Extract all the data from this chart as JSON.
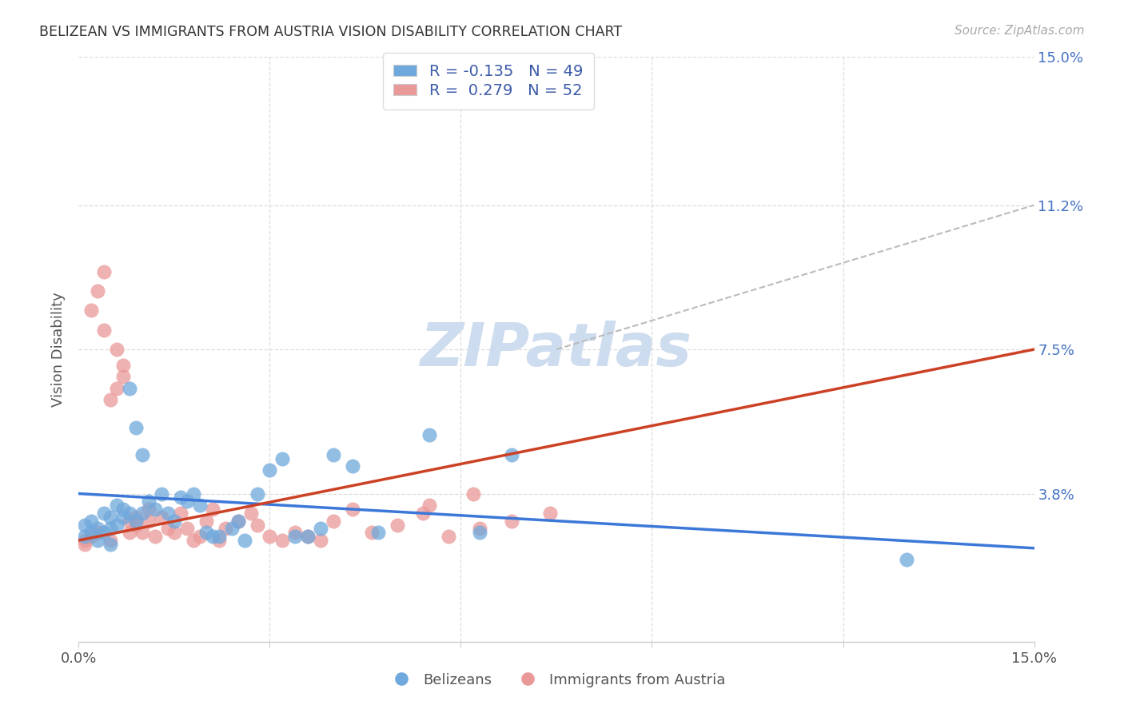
{
  "title": "BELIZEAN VS IMMIGRANTS FROM AUSTRIA VISION DISABILITY CORRELATION CHART",
  "source": "Source: ZipAtlas.com",
  "ylabel_label": "Vision Disability",
  "xlim": [
    0.0,
    0.15
  ],
  "ylim": [
    0.0,
    0.15
  ],
  "r_belizean": -0.135,
  "n_belizean": 49,
  "r_austria": 0.279,
  "n_austria": 52,
  "blue_color": "#6fa8dc",
  "pink_color": "#ea9999",
  "trend_blue": "#3c78d8",
  "trend_pink": "#cc4125",
  "trend_dashed_color": "#bbbbbb",
  "watermark_color": "#cddcee",
  "belizean_x": [
    0.001,
    0.001,
    0.002,
    0.002,
    0.003,
    0.003,
    0.004,
    0.004,
    0.005,
    0.005,
    0.005,
    0.006,
    0.006,
    0.007,
    0.007,
    0.008,
    0.008,
    0.009,
    0.009,
    0.01,
    0.01,
    0.011,
    0.012,
    0.013,
    0.014,
    0.015,
    0.016,
    0.017,
    0.018,
    0.019,
    0.02,
    0.021,
    0.022,
    0.024,
    0.025,
    0.026,
    0.028,
    0.03,
    0.032,
    0.034,
    0.036,
    0.038,
    0.04,
    0.043,
    0.047,
    0.055,
    0.063,
    0.068,
    0.13
  ],
  "belizean_y": [
    0.027,
    0.03,
    0.028,
    0.031,
    0.026,
    0.029,
    0.033,
    0.028,
    0.032,
    0.029,
    0.025,
    0.03,
    0.035,
    0.034,
    0.032,
    0.033,
    0.065,
    0.031,
    0.055,
    0.048,
    0.033,
    0.036,
    0.034,
    0.038,
    0.033,
    0.031,
    0.037,
    0.036,
    0.038,
    0.035,
    0.028,
    0.027,
    0.027,
    0.029,
    0.031,
    0.026,
    0.038,
    0.044,
    0.047,
    0.027,
    0.027,
    0.029,
    0.048,
    0.045,
    0.028,
    0.053,
    0.028,
    0.048,
    0.021
  ],
  "austria_x": [
    0.001,
    0.001,
    0.002,
    0.002,
    0.003,
    0.003,
    0.004,
    0.004,
    0.005,
    0.005,
    0.006,
    0.006,
    0.007,
    0.007,
    0.008,
    0.008,
    0.009,
    0.009,
    0.01,
    0.011,
    0.011,
    0.012,
    0.013,
    0.014,
    0.015,
    0.016,
    0.017,
    0.018,
    0.019,
    0.02,
    0.021,
    0.022,
    0.023,
    0.025,
    0.027,
    0.028,
    0.03,
    0.032,
    0.034,
    0.036,
    0.038,
    0.04,
    0.043,
    0.046,
    0.05,
    0.054,
    0.058,
    0.063,
    0.068,
    0.074,
    0.062,
    0.055
  ],
  "austria_y": [
    0.026,
    0.025,
    0.027,
    0.085,
    0.028,
    0.09,
    0.095,
    0.08,
    0.026,
    0.062,
    0.065,
    0.075,
    0.071,
    0.068,
    0.028,
    0.031,
    0.03,
    0.032,
    0.028,
    0.031,
    0.034,
    0.027,
    0.032,
    0.029,
    0.028,
    0.033,
    0.029,
    0.026,
    0.027,
    0.031,
    0.034,
    0.026,
    0.029,
    0.031,
    0.033,
    0.03,
    0.027,
    0.026,
    0.028,
    0.027,
    0.026,
    0.031,
    0.034,
    0.028,
    0.03,
    0.033,
    0.027,
    0.029,
    0.031,
    0.033,
    0.038,
    0.035
  ],
  "dashed_line_x": [
    0.075,
    0.15
  ],
  "dashed_line_y": [
    0.075,
    0.112
  ],
  "blue_trend_x": [
    0.0,
    0.15
  ],
  "blue_trend_y_start": 0.038,
  "blue_trend_y_end": 0.024,
  "pink_trend_x": [
    0.0,
    0.15
  ],
  "pink_trend_y_start": 0.026,
  "pink_trend_y_end": 0.075
}
